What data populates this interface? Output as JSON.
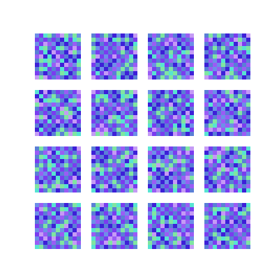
{
  "grid": {
    "rows": 4,
    "cols": 4,
    "tile_cells": 11
  },
  "palette": {
    "background": "#ffffff",
    "cell_colors": [
      "#5a7fd6",
      "#7a3cf0",
      "#3d1fd8",
      "#7fe6a0",
      "#c49bf5",
      "#58e3d2",
      "#6d8fe8",
      "#9a5cf5"
    ]
  },
  "tiles": [
    {
      "seed": 1
    },
    {
      "seed": 2
    },
    {
      "seed": 3
    },
    {
      "seed": 4
    },
    {
      "seed": 5
    },
    {
      "seed": 6
    },
    {
      "seed": 7
    },
    {
      "seed": 8
    },
    {
      "seed": 9
    },
    {
      "seed": 10
    },
    {
      "seed": 11
    },
    {
      "seed": 12
    },
    {
      "seed": 13
    },
    {
      "seed": 14
    },
    {
      "seed": 15
    },
    {
      "seed": 16
    }
  ]
}
